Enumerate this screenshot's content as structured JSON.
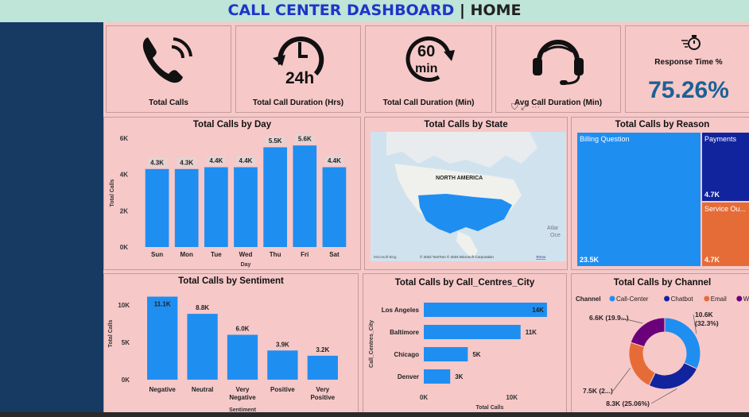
{
  "header": {
    "title_main": "CALL CENTER DASHBOARD",
    "separator": "|",
    "title_page": "HOME"
  },
  "kpis": [
    {
      "label": "Total Calls",
      "icon": "phone-icon"
    },
    {
      "label": "Total Call Duration (Hrs)",
      "icon": "clock-24h-icon",
      "icon_text": "24h"
    },
    {
      "label": "Total Call Duration (Min)",
      "icon": "60-min-icon",
      "icon_text_top": "60",
      "icon_text_bottom": "min"
    },
    {
      "label": "Avg Call Duration (Min)",
      "icon": "headset-icon"
    },
    {
      "label": "Response Time %",
      "value": "75.26%",
      "icon": "stopwatch-icon"
    }
  ],
  "visual_header_icons": [
    "filter-icon",
    "focus-mode-icon",
    "more-options-icon"
  ],
  "charts": {
    "by_day": {
      "title": "Total Calls by Day",
      "chart_data": {
        "type": "bar",
        "categories": [
          "Sun",
          "Mon",
          "Tue",
          "Wed",
          "Thu",
          "Fri",
          "Sat"
        ],
        "values": [
          4300,
          4300,
          4400,
          4400,
          5500,
          5600,
          4400
        ],
        "data_labels": [
          "4.3K",
          "4.3K",
          "4.4K",
          "4.4K",
          "5.5K",
          "5.6K",
          "4.4K"
        ],
        "xlabel": "Day",
        "ylabel": "Total Calls",
        "yticks": [
          "0K",
          "2K",
          "4K",
          "6K"
        ],
        "ylim": [
          0,
          6000
        ],
        "color": "#1f8ef1"
      }
    },
    "by_state": {
      "title": "Total Calls by State",
      "map_label": "NORTH AMERICA",
      "ocean_label_1": "Atlar",
      "ocean_label_2": "Oce",
      "attribution_logo": "Microsoft Bing",
      "attribution": "© 2022 TomTom  © 2024 Microsoft Corporation",
      "terms": "Terms"
    },
    "by_reason": {
      "title": "Total Calls by Reason",
      "chart_data": {
        "type": "treemap",
        "items": [
          {
            "name": "Billing Question",
            "label": "23.5K",
            "color": "#1f8ef1"
          },
          {
            "name": "Payments",
            "label": "4.7K",
            "color": "#12239e"
          },
          {
            "name": "Service Ou...",
            "label": "4.7K",
            "color": "#e66c37"
          }
        ]
      }
    },
    "by_sentiment": {
      "title": "Total Calls by Sentiment",
      "chart_data": {
        "type": "bar",
        "categories": [
          "Negative",
          "Neutral",
          "Very Negative",
          "Positive",
          "Very Positive"
        ],
        "category_lines": [
          [
            "Negative"
          ],
          [
            "Neutral"
          ],
          [
            "Very",
            "Negative"
          ],
          [
            "Positive"
          ],
          [
            "Very",
            "Positive"
          ]
        ],
        "values": [
          11100,
          8800,
          6000,
          3900,
          3200
        ],
        "data_labels": [
          "11.1K",
          "8.8K",
          "6.0K",
          "3.9K",
          "3.2K"
        ],
        "xlabel": "Sentiment",
        "ylabel": "Total Calls",
        "yticks": [
          "0K",
          "5K",
          "10K"
        ],
        "ylim": [
          0,
          12000
        ],
        "color": "#1f8ef1"
      }
    },
    "by_city": {
      "title": "Total Calls by Call_Centres_City",
      "chart_data": {
        "type": "bar",
        "orientation": "horizontal",
        "categories": [
          "Los Angeles",
          "Baltimore",
          "Chicago",
          "Denver"
        ],
        "values": [
          14000,
          11000,
          5000,
          3000
        ],
        "data_labels": [
          "14K",
          "11K",
          "5K",
          "3K"
        ],
        "xlabel": "Total Calls",
        "ylabel": "Call_Centres_City",
        "xticks": [
          "0K",
          "10K"
        ],
        "xlim": [
          0,
          15000
        ],
        "color": "#1f8ef1"
      }
    },
    "by_channel": {
      "title": "Total Calls by Channel",
      "legend_title": "Channel",
      "chart_data": {
        "type": "donut",
        "series": [
          {
            "name": "Call-Center",
            "value": 10600,
            "label": "10.6K (32.3%)",
            "color": "#1f8ef1"
          },
          {
            "name": "Chatbot",
            "value": 8300,
            "label": "8.3K (25.06%)",
            "color": "#12239e"
          },
          {
            "name": "Email",
            "value": 7500,
            "label": "7.5K (2...)",
            "color": "#e66c37"
          },
          {
            "name": "Web",
            "value": 6600,
            "label": "6.6K (19.9...)",
            "color": "#6b007b"
          }
        ]
      }
    }
  }
}
